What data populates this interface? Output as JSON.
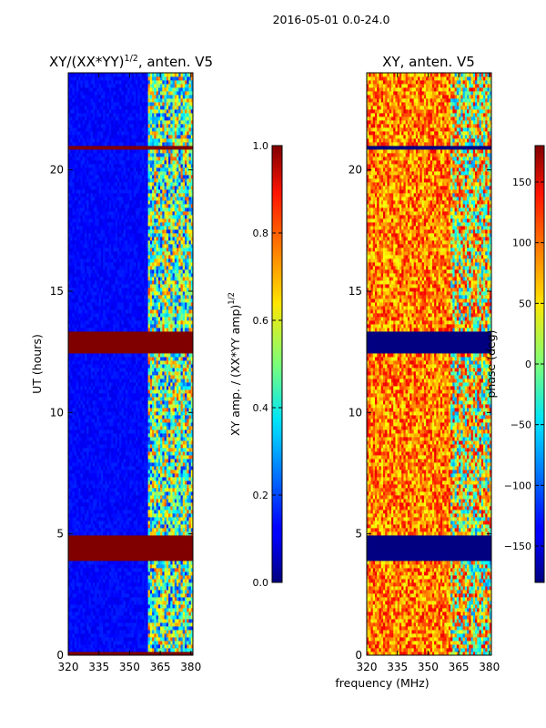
{
  "figure": {
    "suptitle": "2016-05-01 0.0-24.0"
  },
  "chart_data": [
    {
      "type": "heatmap",
      "title_prefix": "XY/(XX*YY)",
      "title_exponent": "1/2",
      "title_suffix": ", anten. V5",
      "ylabel": "UT (hours)",
      "xlim": [
        320,
        381
      ],
      "ylim": [
        0,
        24
      ],
      "xticks": [
        "320",
        "335",
        "350",
        "365",
        "380"
      ],
      "xtick_values": [
        320,
        335,
        350,
        365,
        380
      ],
      "yticks": [
        "0",
        "5",
        "10",
        "15",
        "20"
      ],
      "ytick_values": [
        0,
        5,
        10,
        15,
        20
      ],
      "flagged_ut_ranges": [
        [
          0,
          0.12
        ],
        [
          3.9,
          5.0
        ],
        [
          12.4,
          13.3
        ],
        [
          20.85,
          21.05
        ]
      ],
      "flag_value": 1.0,
      "active_band_mhz": [
        359,
        380
      ],
      "colorbar": {
        "label_prefix": "XY amp. / (XX*YY amp)",
        "label_exponent": "1/2",
        "range": [
          0.0,
          1.0
        ],
        "ticks": [
          "0.0",
          "0.2",
          "0.4",
          "0.6",
          "0.8",
          "1.0"
        ],
        "tick_values": [
          0.0,
          0.2,
          0.4,
          0.6,
          0.8,
          1.0
        ]
      }
    },
    {
      "type": "heatmap",
      "title": "XY, anten. V5",
      "xlabel": "frequency (MHz)",
      "xlim": [
        320,
        381
      ],
      "ylim": [
        0,
        24
      ],
      "xticks": [
        "320",
        "335",
        "350",
        "365",
        "380"
      ],
      "xtick_values": [
        320,
        335,
        350,
        365,
        380
      ],
      "yticks": [
        "0",
        "5",
        "10",
        "15",
        "20"
      ],
      "ytick_values": [
        0,
        5,
        10,
        15,
        20
      ],
      "flagged_ut_ranges": [
        [
          3.9,
          4.9
        ],
        [
          12.4,
          13.4
        ],
        [
          20.85,
          21.05
        ]
      ],
      "flag_value": -180,
      "colorbar": {
        "label": "phase (deg)",
        "range": [
          -180,
          180
        ],
        "ticks": [
          "−150",
          "−100",
          "−50",
          "0",
          "50",
          "100",
          "150"
        ],
        "tick_values": [
          -150,
          -100,
          -50,
          0,
          50,
          100,
          150
        ]
      }
    }
  ]
}
